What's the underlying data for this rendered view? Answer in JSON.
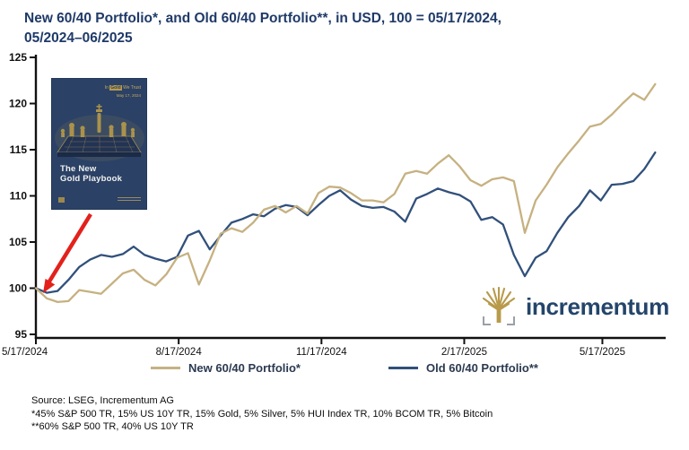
{
  "title": {
    "line1": "New 60/40 Portfolio*, and Old 60/40 Portfolio**, in USD, 100 = 05/17/2024,",
    "line2": "05/2024–06/2025"
  },
  "colors": {
    "title_navy": "#1f3a68",
    "new_portfolio_gold": "#c6b181",
    "old_portfolio_navy": "#31507b",
    "axis_black": "#111111",
    "arrow_red": "#e3211c",
    "book_navy": "#2b4166",
    "logo_gold": "#b89a4a",
    "logo_navy": "#24456b"
  },
  "book": {
    "brand_prefix": "In",
    "brand_gold": "Gold",
    "brand_suffix": "We Trust",
    "date": "May 17, 2024",
    "title_line1": "The New",
    "title_line2": "Gold Playbook"
  },
  "logo": {
    "text": "incrementum"
  },
  "legend": [
    {
      "label": "New 60/40 Portfolio*",
      "color": "#c6b181"
    },
    {
      "label": "Old 60/40 Portfolio**",
      "color": "#31507b"
    }
  ],
  "footer": {
    "source": "Source: LSEG, Incrementum AG",
    "note1": "*45% S&P 500 TR, 15% US 10Y TR, 15% Gold, 5% Silver, 5% HUI Index TR, 10% BCOM TR, 5% Bitcoin",
    "note2": "**60% S&P 500 TR, 40% US 10Y TR"
  },
  "chart_data": {
    "type": "line",
    "title": "New 60/40 Portfolio*, and Old 60/40 Portfolio**, in USD, 100 = 05/17/2024, 05/2024–06/2025",
    "xlabel": "",
    "ylabel": "",
    "grid": false,
    "legend_position": "bottom",
    "x_axis": {
      "unit": "days since 05/17/2024",
      "tick_days": [
        0,
        92,
        184,
        276,
        365
      ],
      "tick_labels": [
        "5/17/2024",
        "8/17/2024",
        "11/17/2024",
        "2/17/2025",
        "5/17/2025"
      ]
    },
    "y_axis": {
      "range": [
        95,
        125
      ],
      "ticks": [
        95,
        100,
        105,
        110,
        115,
        120,
        125
      ]
    },
    "series": [
      {
        "name": "Old 60/40 Portfolio**",
        "color": "#31507b",
        "points": [
          [
            0,
            100.0
          ],
          [
            7,
            99.5
          ],
          [
            14,
            99.7
          ],
          [
            21,
            100.9
          ],
          [
            28,
            102.3
          ],
          [
            35,
            103.1
          ],
          [
            42,
            103.6
          ],
          [
            49,
            103.4
          ],
          [
            56,
            103.7
          ],
          [
            63,
            104.5
          ],
          [
            70,
            103.6
          ],
          [
            77,
            103.2
          ],
          [
            84,
            102.9
          ],
          [
            91,
            103.4
          ],
          [
            98,
            105.7
          ],
          [
            105,
            106.2
          ],
          [
            112,
            104.2
          ],
          [
            119,
            105.7
          ],
          [
            126,
            107.1
          ],
          [
            133,
            107.5
          ],
          [
            140,
            108.0
          ],
          [
            147,
            107.8
          ],
          [
            154,
            108.6
          ],
          [
            161,
            109.0
          ],
          [
            168,
            108.8
          ],
          [
            175,
            107.9
          ],
          [
            182,
            109.0
          ],
          [
            189,
            110.0
          ],
          [
            196,
            110.6
          ],
          [
            203,
            109.6
          ],
          [
            210,
            108.9
          ],
          [
            217,
            108.7
          ],
          [
            224,
            108.8
          ],
          [
            231,
            108.3
          ],
          [
            238,
            107.2
          ],
          [
            245,
            109.7
          ],
          [
            252,
            110.2
          ],
          [
            259,
            110.8
          ],
          [
            266,
            110.4
          ],
          [
            273,
            110.1
          ],
          [
            280,
            109.4
          ],
          [
            287,
            107.4
          ],
          [
            294,
            107.7
          ],
          [
            301,
            106.9
          ],
          [
            308,
            103.6
          ],
          [
            315,
            101.3
          ],
          [
            322,
            103.3
          ],
          [
            329,
            104.0
          ],
          [
            336,
            106.0
          ],
          [
            343,
            107.7
          ],
          [
            350,
            108.9
          ],
          [
            357,
            110.6
          ],
          [
            364,
            109.5
          ],
          [
            371,
            111.2
          ],
          [
            378,
            111.3
          ],
          [
            385,
            111.6
          ],
          [
            392,
            112.9
          ],
          [
            399,
            114.7
          ]
        ]
      },
      {
        "name": "New 60/40 Portfolio*",
        "color": "#c6b181",
        "points": [
          [
            0,
            100.0
          ],
          [
            7,
            98.9
          ],
          [
            14,
            98.5
          ],
          [
            21,
            98.6
          ],
          [
            28,
            99.8
          ],
          [
            35,
            99.6
          ],
          [
            42,
            99.4
          ],
          [
            49,
            100.5
          ],
          [
            56,
            101.6
          ],
          [
            63,
            102.0
          ],
          [
            70,
            100.9
          ],
          [
            77,
            100.3
          ],
          [
            84,
            101.5
          ],
          [
            91,
            103.3
          ],
          [
            98,
            103.8
          ],
          [
            105,
            100.4
          ],
          [
            112,
            103.0
          ],
          [
            119,
            105.9
          ],
          [
            126,
            106.5
          ],
          [
            133,
            106.1
          ],
          [
            140,
            107.1
          ],
          [
            147,
            108.5
          ],
          [
            154,
            108.9
          ],
          [
            161,
            108.2
          ],
          [
            168,
            108.9
          ],
          [
            175,
            108.1
          ],
          [
            182,
            110.3
          ],
          [
            189,
            111.0
          ],
          [
            196,
            110.9
          ],
          [
            203,
            110.3
          ],
          [
            210,
            109.5
          ],
          [
            217,
            109.5
          ],
          [
            224,
            109.3
          ],
          [
            231,
            110.2
          ],
          [
            238,
            112.4
          ],
          [
            245,
            112.7
          ],
          [
            252,
            112.4
          ],
          [
            259,
            113.5
          ],
          [
            266,
            114.4
          ],
          [
            273,
            113.2
          ],
          [
            280,
            111.7
          ],
          [
            287,
            111.1
          ],
          [
            294,
            111.8
          ],
          [
            301,
            112.0
          ],
          [
            308,
            111.6
          ],
          [
            315,
            106.0
          ],
          [
            322,
            109.5
          ],
          [
            329,
            111.2
          ],
          [
            336,
            113.1
          ],
          [
            343,
            114.6
          ],
          [
            350,
            116.0
          ],
          [
            357,
            117.5
          ],
          [
            364,
            117.8
          ],
          [
            371,
            118.8
          ],
          [
            378,
            120.0
          ],
          [
            385,
            121.1
          ],
          [
            392,
            120.4
          ],
          [
            399,
            122.1
          ]
        ]
      }
    ]
  }
}
